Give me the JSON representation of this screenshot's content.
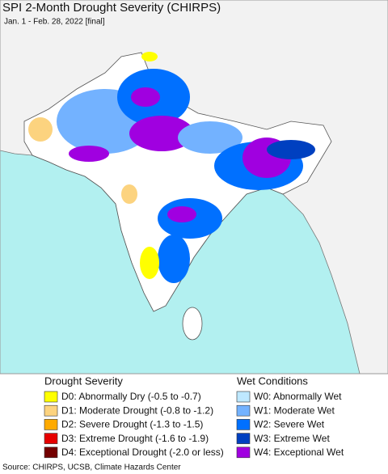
{
  "header": {
    "title": "SPI 2-Month Drought Severity (CHIRPS)",
    "subtitle": "Jan. 1 - Feb. 28, 2022 [final]"
  },
  "legend": {
    "drought": {
      "title": "Drought Severity",
      "items": [
        {
          "label": "D0: Abnormally Dry (-0.5 to -0.7)",
          "color": "#ffff00"
        },
        {
          "label": "D1: Moderate Drought (-0.8 to -1.2)",
          "color": "#fcd37f"
        },
        {
          "label": "D2: Severe Drought (-1.3 to -1.5)",
          "color": "#ffaa00"
        },
        {
          "label": "D3: Extreme Drought (-1.6 to -1.9)",
          "color": "#e60000"
        },
        {
          "label": "D4: Exceptional Drought (-2.0 or less)",
          "color": "#730000"
        }
      ]
    },
    "wet": {
      "title": "Wet Conditions",
      "items": [
        {
          "label": "W0: Abnormally Wet",
          "color": "#bee8ff"
        },
        {
          "label": "W1: Moderate Wet",
          "color": "#73b2ff"
        },
        {
          "label": "W2: Severe Wet",
          "color": "#0070ff"
        },
        {
          "label": "W3: Extreme Wet",
          "color": "#0040c0"
        },
        {
          "label": "W4: Exceptional Wet",
          "color": "#a000e0"
        }
      ]
    }
  },
  "footer": {
    "source": "Source: CHIRPS, UCSB, Climate Hazards Center"
  }
}
